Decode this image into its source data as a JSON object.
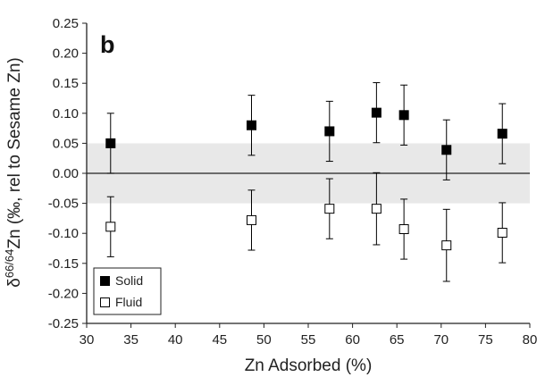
{
  "chart_data": {
    "type": "scatter",
    "panel_label": "b",
    "xlabel": "Zn Adsorbed (%)",
    "ylabel": {
      "prefix": "δ",
      "superscript": "66/64",
      "suffix": "Zn (‰, rel to Sesame Zn)"
    },
    "xlim": [
      30,
      80
    ],
    "ylim": [
      -0.25,
      0.25
    ],
    "xticks": [
      30,
      35,
      40,
      45,
      50,
      55,
      60,
      65,
      70,
      75,
      80
    ],
    "yticks": [
      "0.25",
      "0.20",
      "0.15",
      "0.10",
      "0.05",
      "0.00",
      "-0.05",
      "-0.10",
      "-0.15",
      "-0.20",
      "-0.25"
    ],
    "shaded_band": [
      -0.05,
      0.05
    ],
    "reference_line": 0,
    "legend_position": "bottom-left",
    "series": [
      {
        "name": "Solid",
        "marker": "filled-square",
        "color": "#000000",
        "points": [
          {
            "x": 32.7,
            "y": 0.05,
            "err": 0.05
          },
          {
            "x": 48.6,
            "y": 0.08,
            "err": 0.05
          },
          {
            "x": 57.4,
            "y": 0.07,
            "err": 0.05
          },
          {
            "x": 62.7,
            "y": 0.101,
            "err": 0.05
          },
          {
            "x": 65.8,
            "y": 0.097,
            "err": 0.05
          },
          {
            "x": 70.6,
            "y": 0.039,
            "err": 0.05
          },
          {
            "x": 76.9,
            "y": 0.066,
            "err": 0.05
          }
        ]
      },
      {
        "name": "Fluid",
        "marker": "open-square",
        "color": "#000000",
        "points": [
          {
            "x": 32.7,
            "y": -0.089,
            "err": 0.05
          },
          {
            "x": 48.6,
            "y": -0.078,
            "err": 0.05
          },
          {
            "x": 57.4,
            "y": -0.059,
            "err": 0.05
          },
          {
            "x": 62.7,
            "y": -0.059,
            "err": 0.06
          },
          {
            "x": 65.8,
            "y": -0.093,
            "err": 0.05
          },
          {
            "x": 70.6,
            "y": -0.12,
            "err": 0.06
          },
          {
            "x": 76.9,
            "y": -0.099,
            "err": 0.05
          }
        ]
      }
    ]
  },
  "colors": {
    "band": "#e8e8e8",
    "axis": "#222222"
  }
}
